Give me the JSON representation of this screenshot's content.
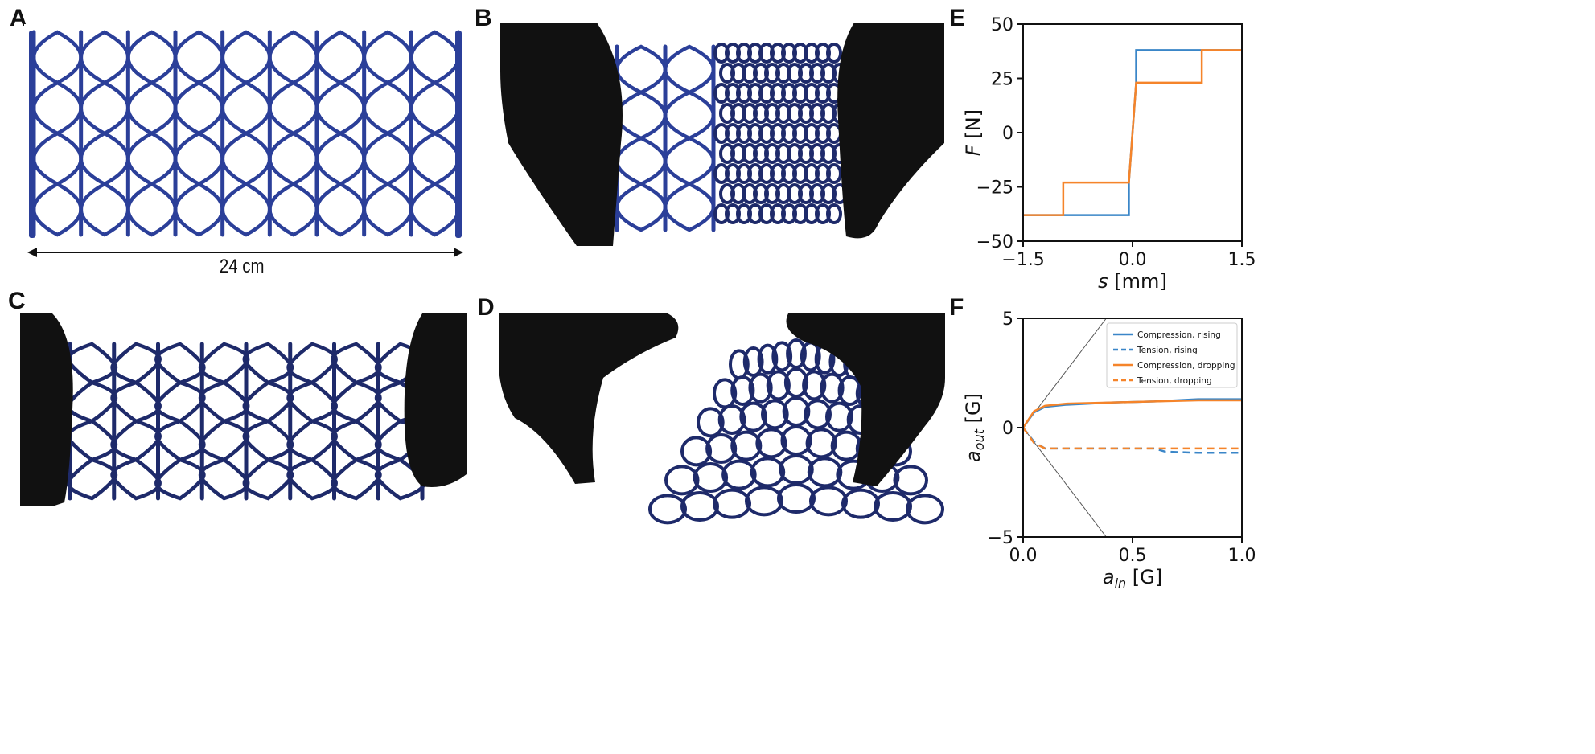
{
  "panels": {
    "A": {
      "letter": "A",
      "scale_label": "24 cm"
    },
    "B": {
      "letter": "B"
    },
    "C": {
      "letter": "C"
    },
    "D": {
      "letter": "D"
    },
    "E": {
      "letter": "E"
    },
    "F": {
      "letter": "F"
    }
  },
  "colors": {
    "lattice": "#2b3f99",
    "lattice_dark": "#1e2a6a",
    "glove": "#111111",
    "blue_series": "#3a86c8",
    "orange_series": "#f5842a"
  },
  "chart_data": [
    {
      "id": "E",
      "type": "line",
      "xlabel_symbol": "s",
      "xlabel_unit": "[mm]",
      "ylabel_symbol": "F",
      "ylabel_unit": "[N]",
      "xlim": [
        -1.5,
        1.5
      ],
      "ylim": [
        -50,
        50
      ],
      "xticks": [
        -1.5,
        0.0,
        1.5
      ],
      "xtick_labels": [
        "−1.5",
        "0.0",
        "1.5"
      ],
      "yticks": [
        50,
        25,
        0,
        -25,
        -50
      ],
      "ytick_labels": [
        "50",
        "25",
        "0",
        "−25",
        "−50"
      ],
      "series": [
        {
          "color": "#3a86c8",
          "x": [
            -1.5,
            -0.05,
            -0.05,
            0.05,
            0.05,
            1.5
          ],
          "y": [
            -38,
            -38,
            -23,
            23,
            38,
            38
          ]
        },
        {
          "color": "#f5842a",
          "x": [
            -1.5,
            -0.95,
            -0.95,
            -0.05,
            0.05,
            0.05,
            0.95,
            0.95,
            1.5
          ],
          "y": [
            -38,
            -38,
            -23,
            -23,
            23,
            23,
            23,
            38,
            38
          ]
        }
      ]
    },
    {
      "id": "F",
      "type": "line",
      "xlabel_symbol": "a",
      "xlabel_sub": "in",
      "xlabel_unit": "[G]",
      "ylabel_symbol": "a",
      "ylabel_sub": "out",
      "ylabel_unit": "[G]",
      "xlim": [
        0.0,
        1.0
      ],
      "ylim": [
        -5,
        5
      ],
      "xticks": [
        0.0,
        0.5,
        1.0
      ],
      "xtick_labels": [
        "0.0",
        "0.5",
        "1.0"
      ],
      "yticks": [
        5,
        0,
        -5
      ],
      "ytick_labels": [
        "5",
        "0",
        "−5"
      ],
      "legend_position": "top-right",
      "guide_lines": [
        {
          "x": [
            0,
            0.38
          ],
          "y": [
            0,
            5
          ]
        },
        {
          "x": [
            0,
            0.38
          ],
          "y": [
            0,
            -5
          ]
        }
      ],
      "series": [
        {
          "name": "Compression, rising",
          "color": "#3a86c8",
          "dash": "solid",
          "x": [
            0,
            0.05,
            0.1,
            0.2,
            0.4,
            0.6,
            0.8,
            1.0
          ],
          "y": [
            0,
            0.7,
            0.95,
            1.05,
            1.15,
            1.2,
            1.3,
            1.3
          ]
        },
        {
          "name": "Tension, rising",
          "color": "#3a86c8",
          "dash": "dashed",
          "x": [
            0,
            0.05,
            0.1,
            0.2,
            0.4,
            0.6,
            0.65,
            0.8,
            1.0
          ],
          "y": [
            0,
            -0.65,
            -0.95,
            -0.95,
            -0.95,
            -0.95,
            -1.1,
            -1.15,
            -1.15
          ]
        },
        {
          "name": "Compression, dropping",
          "color": "#f5842a",
          "dash": "solid",
          "x": [
            0,
            0.05,
            0.1,
            0.2,
            0.4,
            0.6,
            0.8,
            1.0
          ],
          "y": [
            0,
            0.75,
            1.0,
            1.1,
            1.15,
            1.2,
            1.25,
            1.25
          ]
        },
        {
          "name": "Tension, dropping",
          "color": "#f5842a",
          "dash": "dashed",
          "x": [
            0,
            0.05,
            0.1,
            0.2,
            0.4,
            0.6,
            0.8,
            1.0
          ],
          "y": [
            0,
            -0.7,
            -0.95,
            -0.95,
            -0.95,
            -0.95,
            -0.95,
            -0.95
          ]
        }
      ]
    }
  ]
}
